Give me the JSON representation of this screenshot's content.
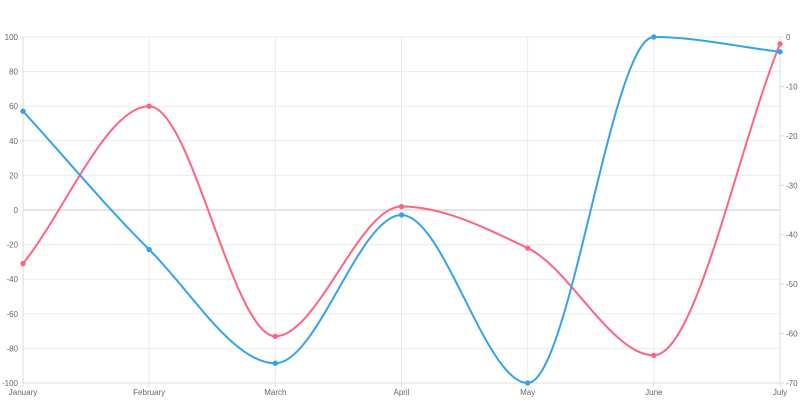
{
  "chart_data": {
    "type": "line",
    "title": "",
    "xlabel": "",
    "ylabel": "",
    "categories": [
      "January",
      "February",
      "March",
      "April",
      "May",
      "June",
      "July"
    ],
    "series": [
      {
        "axis": "left",
        "color": "#ff6384",
        "values": [
          -31,
          60,
          -73,
          2,
          -22,
          -84,
          96
        ]
      },
      {
        "axis": "right",
        "color": "#36a2eb",
        "values": [
          -15,
          -43,
          -66,
          -36,
          -70,
          0,
          -3
        ]
      }
    ],
    "y_left": {
      "min": -100,
      "max": 100,
      "ticks": [
        100,
        80,
        60,
        40,
        20,
        0,
        -20,
        -40,
        -60,
        -80,
        -100
      ]
    },
    "y_right": {
      "min": -70,
      "max": 0,
      "ticks": [
        0,
        -10,
        -20,
        -30,
        -40,
        -50,
        -60,
        -70
      ]
    },
    "grid": true,
    "legend": "none"
  }
}
